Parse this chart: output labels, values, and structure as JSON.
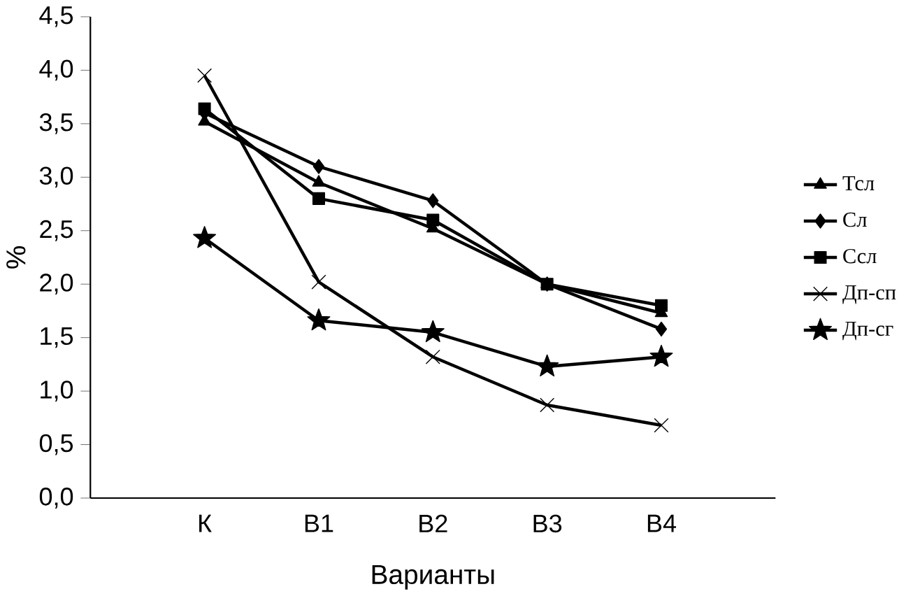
{
  "chart_data": {
    "type": "line",
    "xlabel": "Варианты",
    "ylabel": "%",
    "categories": [
      "К",
      "В1",
      "В2",
      "В3",
      "В4"
    ],
    "series": [
      {
        "name": "Тсл",
        "color": "#000000",
        "marker": "triangle",
        "values": [
          3.52,
          2.95,
          2.52,
          2.0,
          1.73
        ]
      },
      {
        "name": "Сл",
        "color": "#000000",
        "marker": "diamond",
        "values": [
          3.6,
          3.1,
          2.78,
          2.0,
          1.58
        ]
      },
      {
        "name": "Ссл",
        "color": "#000000",
        "marker": "square",
        "values": [
          3.64,
          2.8,
          2.6,
          2.0,
          1.8
        ]
      },
      {
        "name": "Дп-сп",
        "color": "#000000",
        "marker": "cross",
        "values": [
          3.95,
          2.02,
          1.32,
          0.87,
          0.68
        ]
      },
      {
        "name": "Дп-сг",
        "color": "#000000",
        "marker": "star",
        "values": [
          2.43,
          1.66,
          1.55,
          1.23,
          1.32
        ]
      }
    ],
    "ylim": [
      0,
      4.5
    ],
    "yticks": [
      {
        "value": 0,
        "label": "0,0"
      },
      {
        "value": 0.5,
        "label": "0,5"
      },
      {
        "value": 1,
        "label": "1,0"
      },
      {
        "value": 1.5,
        "label": "1,5"
      },
      {
        "value": 2,
        "label": "2,0"
      },
      {
        "value": 2.5,
        "label": "2,5"
      },
      {
        "value": 3,
        "label": "3,0"
      },
      {
        "value": 3.5,
        "label": "3,5"
      },
      {
        "value": 4,
        "label": "4,0"
      },
      {
        "value": 4.5,
        "label": "4,5"
      }
    ],
    "grid": false,
    "legend": "right",
    "line_style": "solid"
  }
}
